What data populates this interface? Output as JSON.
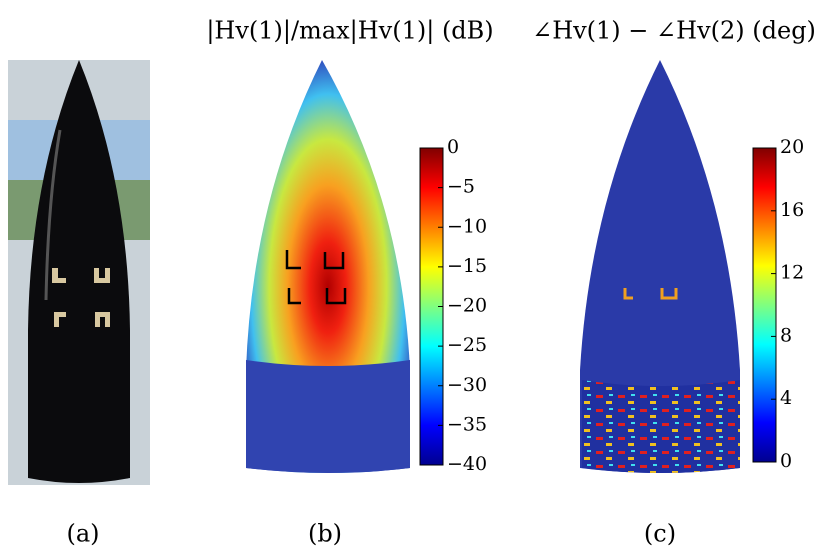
{
  "panels": [
    {
      "label": "(a)"
    },
    {
      "label": "(b)",
      "title": "|Hv(1)|/max|Hv(1)| (dB)",
      "colorbar": {
        "lim": [
          -40,
          0
        ],
        "ticks": [
          {
            "value": 0,
            "label": "0"
          },
          {
            "value": -5,
            "label": "−5"
          },
          {
            "value": -10,
            "label": "−10"
          },
          {
            "value": -15,
            "label": "−15"
          },
          {
            "value": -20,
            "label": "−20"
          },
          {
            "value": -25,
            "label": "−25"
          },
          {
            "value": -30,
            "label": "−30"
          },
          {
            "value": -35,
            "label": "−35"
          },
          {
            "value": -40,
            "label": "−40"
          }
        ]
      }
    },
    {
      "label": "(c)",
      "title": "∠Hv(1) − ∠Hv(2) (deg)",
      "colorbar": {
        "lim": [
          0,
          20
        ],
        "ticks": [
          20,
          16,
          12,
          8,
          4,
          0
        ]
      }
    }
  ]
}
